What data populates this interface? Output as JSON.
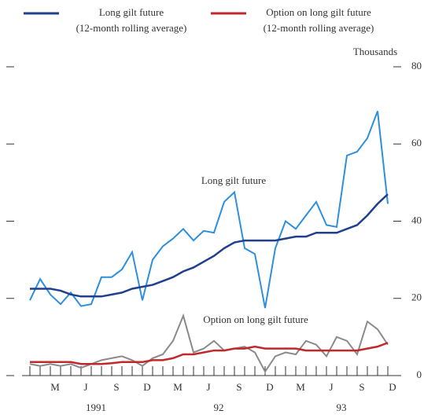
{
  "chart_data": {
    "type": "line",
    "y_unit": "Thousands",
    "categories": [
      null,
      null,
      "M",
      null,
      null,
      "J",
      null,
      null,
      "S",
      null,
      null,
      "D",
      null,
      null,
      "M",
      null,
      null,
      "J",
      null,
      null,
      "S",
      null,
      null,
      "D",
      null,
      null,
      "M",
      null,
      null,
      "J",
      null,
      null,
      "S",
      null,
      null,
      "D"
    ],
    "years": [
      "1991",
      "92",
      "93"
    ],
    "ylim": [
      0,
      80
    ],
    "yticks": [
      0,
      20,
      40,
      60,
      80
    ],
    "series": [
      {
        "name": "Long gilt future",
        "note": "(12-month rolling average)",
        "color": "#1f3f8f",
        "values": [
          22.5,
          22.5,
          22.5,
          22,
          21,
          20.5,
          20.5,
          20.5,
          21,
          21.5,
          22.5,
          23,
          23.5,
          24.5,
          25.5,
          27,
          28,
          29.5,
          31,
          33,
          34.5,
          35,
          35,
          35,
          35,
          35.5,
          36,
          36,
          37,
          37,
          37,
          38,
          39,
          41.5,
          44.5,
          47
        ]
      },
      {
        "name": "Option on long gilt future",
        "note": "(12-month rolling average)",
        "color": "#c0282a",
        "values": [
          3.5,
          3.5,
          3.5,
          3.5,
          3.5,
          3,
          3,
          3,
          3.2,
          3.5,
          3.5,
          3.5,
          4,
          4,
          4.5,
          5.5,
          5.5,
          6,
          6.5,
          6.5,
          7,
          7,
          7.5,
          7,
          7,
          7,
          7,
          6.5,
          6.5,
          6.5,
          6.5,
          6.5,
          6.5,
          7,
          7.5,
          8.5
        ]
      },
      {
        "name": "Long gilt future",
        "color": "#2e8fdc",
        "values": [
          19.5,
          25,
          21,
          18.5,
          21.5,
          18,
          18.5,
          25.5,
          25.5,
          27.5,
          32,
          19.5,
          30,
          33.5,
          35.5,
          38,
          35,
          37.5,
          37,
          45,
          47.5,
          33,
          31.5,
          17.5,
          33,
          40,
          38,
          41.5,
          45,
          39,
          38.5,
          57,
          58,
          61.5,
          68.5,
          44.5
        ]
      },
      {
        "name": "Option on long gilt future",
        "color": "#8a8a8a",
        "values": [
          3,
          2.5,
          3,
          2.5,
          3,
          2,
          3,
          4,
          4.5,
          5,
          4,
          2.5,
          4.5,
          5.5,
          9,
          15.5,
          6,
          7,
          9,
          6.5,
          7,
          7.5,
          6,
          1,
          5,
          6,
          5.5,
          9,
          8,
          5,
          10,
          9,
          5.5,
          14,
          12,
          8
        ]
      }
    ]
  }
}
